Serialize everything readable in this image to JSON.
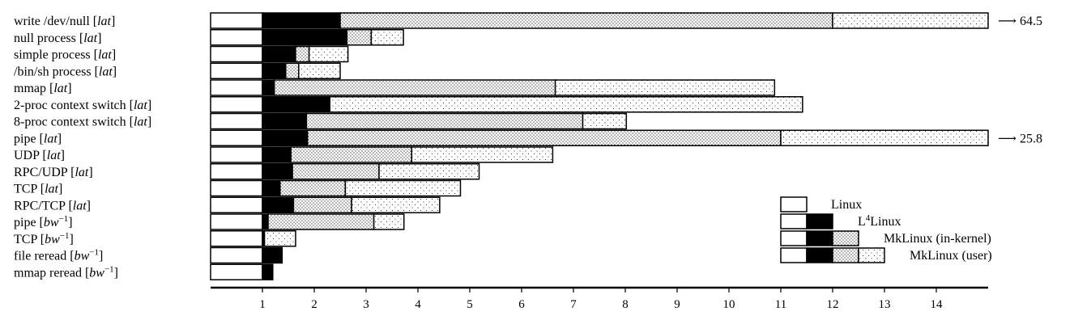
{
  "chart_data": {
    "type": "bar",
    "orientation": "horizontal",
    "stacked": true,
    "grid": false,
    "xlim": [
      0,
      15
    ],
    "xticks": [
      "1",
      "2",
      "3",
      "4",
      "5",
      "6",
      "7",
      "8",
      "9",
      "10",
      "11",
      "12",
      "13",
      "14"
    ],
    "series_order": [
      "Linux",
      "L4Linux",
      "MkLinux (in-kernel)",
      "MkLinux (user)"
    ],
    "legend": {
      "placement": "bottom-right",
      "entries": [
        {
          "label_base": "Linux",
          "label_sup": "",
          "label_rest": ""
        },
        {
          "label_base": "L",
          "label_sup": "4",
          "label_rest": "Linux"
        },
        {
          "label_base": "MkLinux (in-kernel)",
          "label_sup": "",
          "label_rest": ""
        },
        {
          "label_base": "MkLinux (user)",
          "label_sup": "",
          "label_rest": ""
        }
      ]
    },
    "categories": [
      {
        "name": "write /dev/null",
        "metric": "lat",
        "values": [
          1.0,
          2.5,
          12.0,
          64.5
        ],
        "overflow_label": "64.5"
      },
      {
        "name": "null process",
        "metric": "lat",
        "values": [
          1.0,
          2.63,
          3.1,
          3.72
        ]
      },
      {
        "name": "simple process",
        "metric": "lat",
        "values": [
          1.0,
          1.64,
          1.9,
          2.65
        ]
      },
      {
        "name": "/bin/sh process",
        "metric": "lat",
        "values": [
          1.0,
          1.45,
          1.7,
          2.5
        ]
      },
      {
        "name": "mmap",
        "metric": "lat",
        "values": [
          1.0,
          1.23,
          6.65,
          10.88
        ]
      },
      {
        "name": "2-proc context switch",
        "metric": "lat",
        "values": [
          1.0,
          2.3,
          null,
          11.42
        ]
      },
      {
        "name": "8-proc context switch",
        "metric": "lat",
        "values": [
          1.0,
          1.85,
          7.18,
          8.02
        ]
      },
      {
        "name": "pipe",
        "metric": "lat",
        "values": [
          1.0,
          1.87,
          11.0,
          25.8
        ],
        "overflow_label": "25.8"
      },
      {
        "name": "UDP",
        "metric": "lat",
        "values": [
          1.0,
          1.55,
          3.88,
          6.6
        ]
      },
      {
        "name": "RPC/UDP",
        "metric": "lat",
        "values": [
          1.0,
          1.58,
          3.25,
          5.18
        ]
      },
      {
        "name": "TCP",
        "metric": "lat",
        "values": [
          1.0,
          1.34,
          2.6,
          4.82
        ]
      },
      {
        "name": "RPC/TCP",
        "metric": "lat",
        "values": [
          1.0,
          1.6,
          2.72,
          4.42
        ]
      },
      {
        "name": "pipe",
        "metric": "bw",
        "metric_sup": "−1",
        "values": [
          1.0,
          1.11,
          3.15,
          3.73
        ]
      },
      {
        "name": "TCP",
        "metric": "bw",
        "metric_sup": "−1",
        "values": [
          1.0,
          1.04,
          null,
          1.64
        ]
      },
      {
        "name": "file reread",
        "metric": "bw",
        "metric_sup": "−1",
        "values": [
          1.0,
          1.38,
          null,
          null
        ]
      },
      {
        "name": "mmap reread",
        "metric": "bw",
        "metric_sup": "−1",
        "values": [
          1.0,
          1.2,
          null,
          null
        ]
      }
    ]
  }
}
